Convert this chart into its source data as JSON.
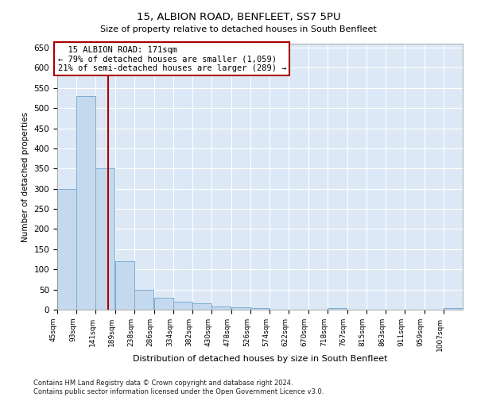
{
  "title1": "15, ALBION ROAD, BENFLEET, SS7 5PU",
  "title2": "Size of property relative to detached houses in South Benfleet",
  "xlabel": "Distribution of detached houses by size in South Benfleet",
  "ylabel": "Number of detached properties",
  "footnote": "Contains HM Land Registry data © Crown copyright and database right 2024.\nContains public sector information licensed under the Open Government Licence v3.0.",
  "annotation_line1": "15 ALBION ROAD: 171sqm",
  "annotation_line2": "← 79% of detached houses are smaller (1,059)",
  "annotation_line3": "21% of semi-detached houses are larger (289) →",
  "bar_color": "#c5d9ee",
  "bar_edge_color": "#7aadd4",
  "vline_color": "#aa0000",
  "vline_x": 171,
  "background_color": "#dce8f5",
  "bins": [
    45,
    93,
    141,
    189,
    238,
    286,
    334,
    382,
    430,
    478,
    526,
    574,
    622,
    670,
    718,
    767,
    815,
    863,
    911,
    959,
    1007
  ],
  "counts": [
    300,
    530,
    350,
    120,
    50,
    30,
    20,
    15,
    8,
    5,
    3,
    0,
    0,
    0,
    3,
    0,
    0,
    0,
    0,
    0,
    3
  ],
  "ylim": [
    0,
    660
  ],
  "yticks": [
    0,
    50,
    100,
    150,
    200,
    250,
    300,
    350,
    400,
    450,
    500,
    550,
    600,
    650
  ]
}
